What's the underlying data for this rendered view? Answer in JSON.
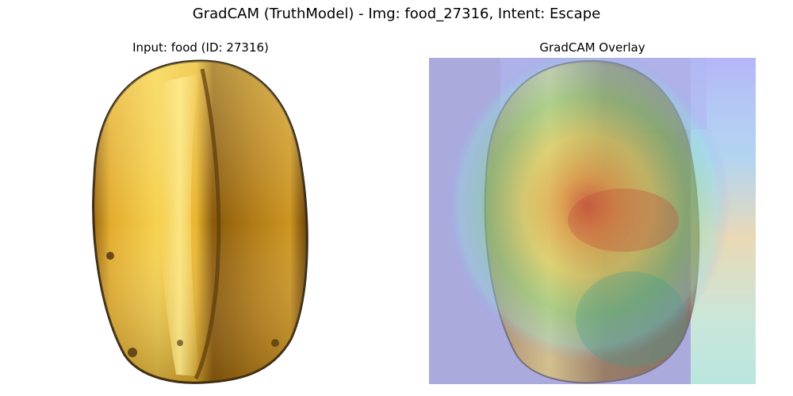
{
  "figure": {
    "title": "GradCAM (TruthModel) - Img: food_27316, Intent: Escape"
  },
  "panels": {
    "left": {
      "title": "Input: food (ID: 27316)"
    },
    "right": {
      "title": "GradCAM Overlay"
    }
  },
  "colors": {
    "background": "#ffffff",
    "fruit_yellow": "#f0c23a",
    "fruit_light": "#ffe27a",
    "fruit_dark": "#6e4a08",
    "fruit_edge": "#3a2a10",
    "overlay_blue": "#aaaadd",
    "overlay_hot": "#c8643a"
  }
}
